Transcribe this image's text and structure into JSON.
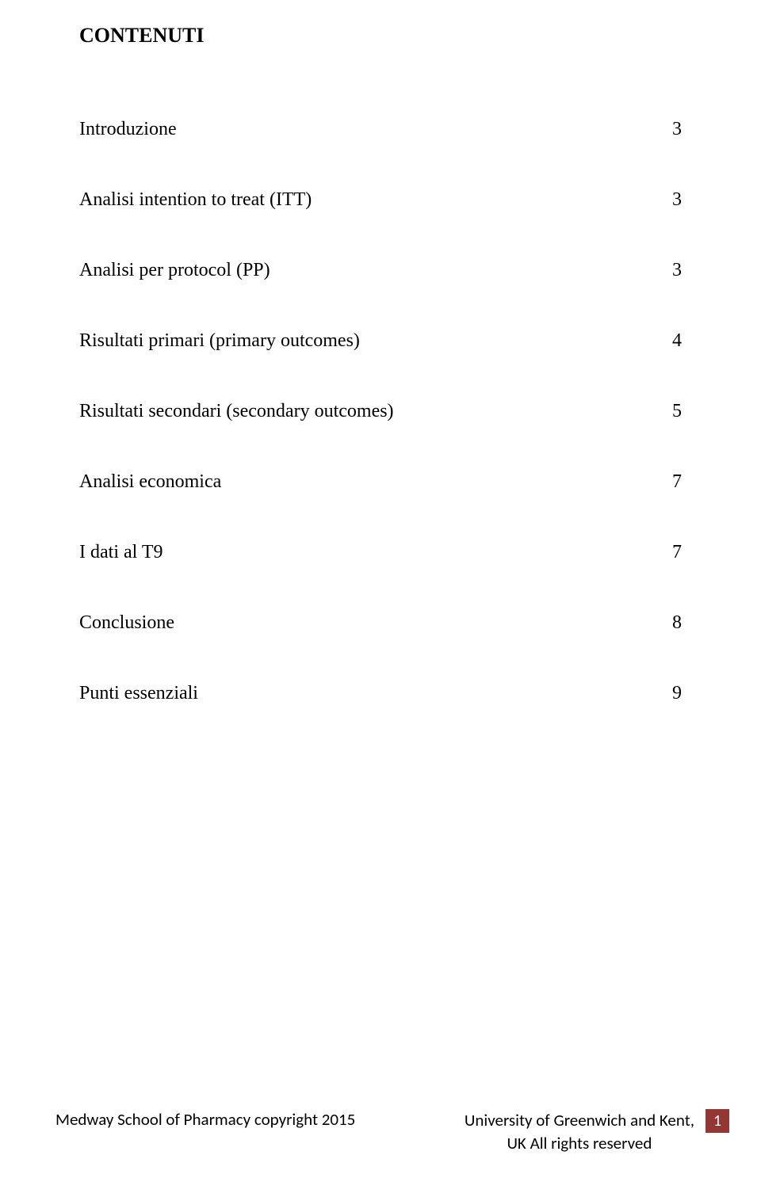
{
  "heading": "CONTENUTI",
  "toc": [
    {
      "label": "Introduzione",
      "page": "3"
    },
    {
      "label": "Analisi intention to treat (ITT)",
      "page": "3"
    },
    {
      "label": "Analisi per protocol (PP)",
      "page": "3"
    },
    {
      "label": "Risultati primari (primary outcomes)",
      "page": "4"
    },
    {
      "label": "Risultati secondari (secondary outcomes)",
      "page": "5"
    },
    {
      "label": "Analisi economica",
      "page": "7"
    },
    {
      "label": "I dati al T9",
      "page": "7"
    },
    {
      "label": "Conclusione",
      "page": "8"
    },
    {
      "label": "Punti essenziali",
      "page": "9"
    }
  ],
  "footer": {
    "left": "Medway School of Pharmacy copyright 2015",
    "right_line1": "University of Greenwich and Kent,",
    "right_line2": "UK  All rights reserved",
    "page_number": "1"
  },
  "colors": {
    "page_number_bg": "#943634",
    "page_number_fg": "#ffffff",
    "text": "#000000",
    "background": "#ffffff"
  }
}
